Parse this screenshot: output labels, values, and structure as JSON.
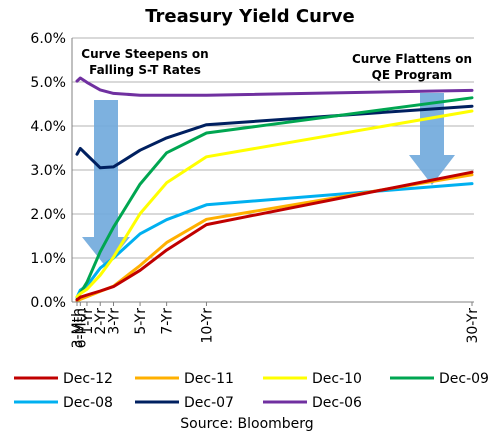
{
  "chart_data": {
    "type": "line",
    "title": "Treasury Yield Curve",
    "source": "Source: Bloomberg",
    "x": [
      "3-Mth",
      "6-Mth",
      "1-Yr",
      "2-Yr",
      "3-Yr",
      "5-Yr",
      "7-Yr",
      "10-Yr",
      "30-Yr"
    ],
    "x_years": [
      0.25,
      0.5,
      1,
      2,
      3,
      5,
      7,
      10,
      30
    ],
    "y_ticks": [
      "0.0%",
      "1.0%",
      "2.0%",
      "3.0%",
      "4.0%",
      "5.0%",
      "6.0%"
    ],
    "ylim": [
      0,
      6
    ],
    "grid": true,
    "legend_position": "bottom",
    "series": [
      {
        "name": "Dec-12",
        "color": "#c00000",
        "values": [
          0.05,
          0.11,
          0.16,
          0.25,
          0.35,
          0.72,
          1.18,
          1.76,
          2.95
        ]
      },
      {
        "name": "Dec-11",
        "color": "#ffb000",
        "values": [
          0.02,
          0.06,
          0.12,
          0.24,
          0.36,
          0.83,
          1.35,
          1.88,
          2.89
        ]
      },
      {
        "name": "Dec-10",
        "color": "#ffff00",
        "values": [
          0.12,
          0.19,
          0.29,
          0.61,
          1.02,
          2.01,
          2.71,
          3.3,
          4.34
        ]
      },
      {
        "name": "Dec-09",
        "color": "#00a651",
        "values": [
          0.06,
          0.2,
          0.45,
          1.14,
          1.7,
          2.68,
          3.39,
          3.84,
          4.64
        ]
      },
      {
        "name": "Dec-08",
        "color": "#00b0f0",
        "values": [
          0.11,
          0.27,
          0.37,
          0.77,
          1.0,
          1.55,
          1.87,
          2.21,
          2.69
        ]
      },
      {
        "name": "Dec-07",
        "color": "#002060",
        "values": [
          3.36,
          3.49,
          3.34,
          3.05,
          3.07,
          3.45,
          3.73,
          4.03,
          4.45
        ]
      },
      {
        "name": "Dec-06",
        "color": "#7030a0",
        "values": [
          5.02,
          5.09,
          4.99,
          4.82,
          4.74,
          4.7,
          4.7,
          4.7,
          4.81
        ]
      }
    ],
    "annotations": [
      {
        "lines": [
          "Curve Steepens on",
          "Falling S-T Rates"
        ]
      },
      {
        "lines": [
          "Curve Flattens on",
          "QE Program"
        ]
      }
    ],
    "arrow_color": "#6fa8dc"
  }
}
